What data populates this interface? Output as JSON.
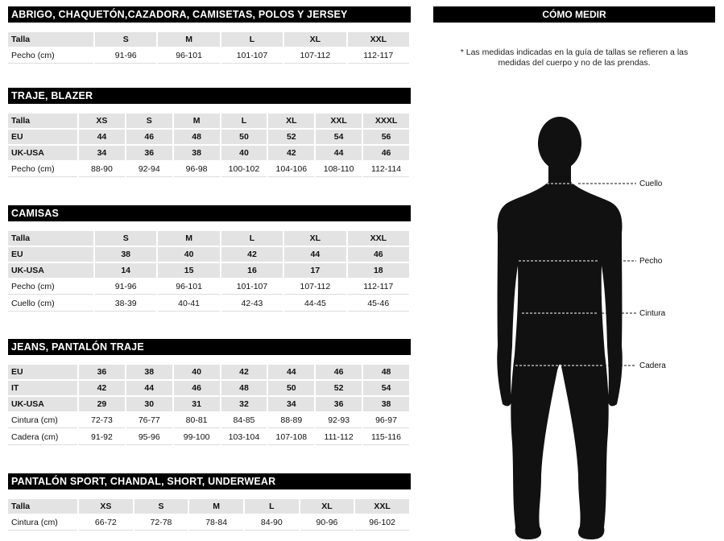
{
  "sections": [
    {
      "title": "ABRIGO, CHAQUETÓN,CAZADORA, CAMISETAS, POLOS Y JERSEY",
      "rows": [
        {
          "bold": true,
          "cells": [
            "Talla",
            "S",
            "M",
            "L",
            "XL",
            "XXL"
          ]
        },
        {
          "bold": false,
          "cells": [
            "Pecho (cm)",
            "91-96",
            "96-101",
            "101-107",
            "107-112",
            "112-117"
          ]
        }
      ]
    },
    {
      "title": "TRAJE, BLAZER",
      "rows": [
        {
          "bold": true,
          "cells": [
            "Talla",
            "XS",
            "S",
            "M",
            "L",
            "XL",
            "XXL",
            "XXXL"
          ]
        },
        {
          "bold": true,
          "cells": [
            "EU",
            "44",
            "46",
            "48",
            "50",
            "52",
            "54",
            "56"
          ]
        },
        {
          "bold": true,
          "cells": [
            "UK-USA",
            "34",
            "36",
            "38",
            "40",
            "42",
            "44",
            "46"
          ]
        },
        {
          "bold": false,
          "cells": [
            "Pecho (cm)",
            "88-90",
            "92-94",
            "96-98",
            "100-102",
            "104-106",
            "108-110",
            "112-114"
          ]
        }
      ]
    },
    {
      "title": "CAMISAS",
      "rows": [
        {
          "bold": true,
          "cells": [
            "Talla",
            "S",
            "M",
            "L",
            "XL",
            "XXL"
          ]
        },
        {
          "bold": true,
          "cells": [
            "EU",
            "38",
            "40",
            "42",
            "44",
            "46"
          ]
        },
        {
          "bold": true,
          "cells": [
            "UK-USA",
            "14",
            "15",
            "16",
            "17",
            "18"
          ]
        },
        {
          "bold": false,
          "cells": [
            "Pecho (cm)",
            "91-96",
            "96-101",
            "101-107",
            "107-112",
            "112-117"
          ]
        },
        {
          "bold": false,
          "cells": [
            "Cuello (cm)",
            "38-39",
            "40-41",
            "42-43",
            "44-45",
            "45-46"
          ]
        }
      ]
    },
    {
      "title": "JEANS, PANTALÓN TRAJE",
      "rows": [
        {
          "bold": true,
          "cells": [
            "EU",
            "36",
            "38",
            "40",
            "42",
            "44",
            "46",
            "48"
          ]
        },
        {
          "bold": true,
          "cells": [
            "IT",
            "42",
            "44",
            "46",
            "48",
            "50",
            "52",
            "54"
          ]
        },
        {
          "bold": true,
          "cells": [
            "UK-USA",
            "29",
            "30",
            "31",
            "32",
            "34",
            "36",
            "38"
          ]
        },
        {
          "bold": false,
          "cells": [
            "Cintura (cm)",
            "72-73",
            "76-77",
            "80-81",
            "84-85",
            "88-89",
            "92-93",
            "96-97"
          ]
        },
        {
          "bold": false,
          "cells": [
            "Cadera (cm)",
            "91-92",
            "95-96",
            "99-100",
            "103-104",
            "107-108",
            "111-112",
            "115-116"
          ]
        }
      ]
    },
    {
      "title": "PANTALÓN SPORT, CHANDAL, SHORT, UNDERWEAR",
      "rows": [
        {
          "bold": true,
          "cells": [
            "Talla",
            "XS",
            "S",
            "M",
            "L",
            "XL",
            "XXL"
          ]
        },
        {
          "bold": false,
          "cells": [
            "Cintura (cm)",
            "66-72",
            "72-78",
            "78-84",
            "84-90",
            "90-96",
            "96-102"
          ]
        }
      ]
    }
  ],
  "measure": {
    "title": "CÓMO MEDIR",
    "note": "* Las medidas indicadas en la guía de tallas se refieren a las medidas del cuerpo y no de las prendas.",
    "labels": {
      "neck": "Cuello",
      "chest": "Pecho",
      "waist": "Cintura",
      "hip": "Cadera"
    }
  },
  "colors": {
    "header_bg": "#000000",
    "header_text": "#ffffff",
    "row_highlight": "#e3e3e3",
    "silhouette": "#111111"
  }
}
